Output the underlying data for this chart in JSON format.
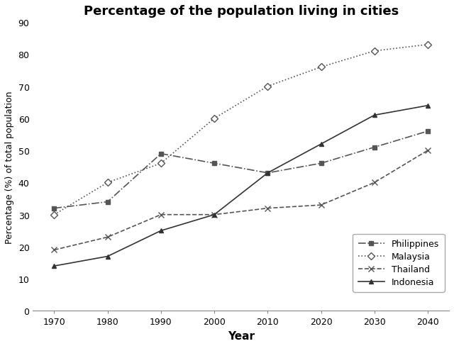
{
  "title": "Percentage of the population living in cities",
  "xlabel": "Year",
  "ylabel": "Percentage (%) of total population",
  "years": [
    1970,
    1980,
    1990,
    2000,
    2010,
    2020,
    2030,
    2040
  ],
  "series": {
    "Philippines": {
      "values": [
        32,
        34,
        49,
        46,
        43,
        46,
        51,
        56
      ],
      "color": "#555555",
      "linestyle": "-.",
      "marker": "s",
      "marker_hollow": false,
      "label": "Philippines",
      "markersize": 5
    },
    "Malaysia": {
      "values": [
        30,
        40,
        46,
        60,
        70,
        76,
        81,
        83
      ],
      "color": "#555555",
      "linestyle": ":",
      "marker": "D",
      "marker_hollow": true,
      "label": "Malaysia",
      "markersize": 5
    },
    "Thailand": {
      "values": [
        19,
        23,
        30,
        30,
        32,
        33,
        40,
        50
      ],
      "color": "#555555",
      "linestyle": "--",
      "marker": "x",
      "marker_hollow": false,
      "label": "Thailand",
      "markersize": 6
    },
    "Indonesia": {
      "values": [
        14,
        17,
        25,
        30,
        43,
        52,
        61,
        64
      ],
      "color": "#333333",
      "linestyle": "-",
      "marker": "^",
      "marker_hollow": false,
      "label": "Indonesia",
      "markersize": 5
    }
  },
  "ylim": [
    0,
    90
  ],
  "yticks": [
    0,
    10,
    20,
    30,
    40,
    50,
    60,
    70,
    80,
    90
  ],
  "xlim": [
    1966,
    2044
  ],
  "background_color": "#ffffff",
  "legend_order": [
    "Philippines",
    "Malaysia",
    "Thailand",
    "Indonesia"
  ]
}
